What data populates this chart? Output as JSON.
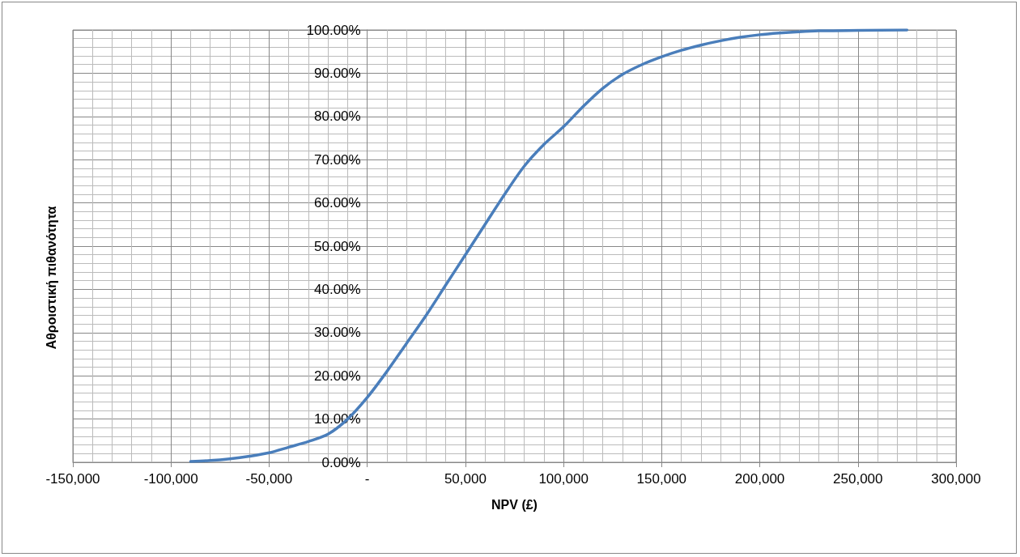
{
  "chart_data": {
    "type": "line",
    "xlabel": "NPV (£)",
    "ylabel": "Αθροιστική πιθανότητα",
    "series": [
      {
        "color": "#4a7ebb",
        "x": [
          -90000,
          -80000,
          -70000,
          -60000,
          -50000,
          -40000,
          -30000,
          -20000,
          -10000,
          0,
          10000,
          20000,
          30000,
          40000,
          50000,
          60000,
          70000,
          80000,
          90000,
          100000,
          110000,
          120000,
          130000,
          140000,
          150000,
          160000,
          170000,
          180000,
          190000,
          200000,
          210000,
          220000,
          230000,
          250000,
          275000
        ],
        "values": [
          0.2,
          0.4,
          0.8,
          1.4,
          2.2,
          3.5,
          4.8,
          6.5,
          10,
          15,
          21,
          27.5,
          34,
          41,
          48,
          55,
          62,
          68.5,
          73.5,
          77.6,
          82.3,
          86.5,
          89.7,
          92,
          93.8,
          95.3,
          96.5,
          97.5,
          98.3,
          98.9,
          99.3,
          99.6,
          99.8,
          99.9,
          100
        ]
      }
    ],
    "xlim": [
      -150000,
      300000
    ],
    "xticks": [
      {
        "value": -150000,
        "label": "-150,000"
      },
      {
        "value": -100000,
        "label": "-100,000"
      },
      {
        "value": -50000,
        "label": "-50,000"
      },
      {
        "value": 0,
        "label": "-"
      },
      {
        "value": 50000,
        "label": "50,000"
      },
      {
        "value": 100000,
        "label": "100,000"
      },
      {
        "value": 150000,
        "label": "150,000"
      },
      {
        "value": 200000,
        "label": "200,000"
      },
      {
        "value": 250000,
        "label": "250,000"
      },
      {
        "value": 300000,
        "label": "300,000"
      }
    ],
    "ylim": [
      0,
      100
    ],
    "yticks": [
      {
        "value": 0,
        "label": "0.00%"
      },
      {
        "value": 10,
        "label": "10.00%"
      },
      {
        "value": 20,
        "label": "20.00%"
      },
      {
        "value": 30,
        "label": "30.00%"
      },
      {
        "value": 40,
        "label": "40.00%"
      },
      {
        "value": 50,
        "label": "50.00%"
      },
      {
        "value": 60,
        "label": "60.00%"
      },
      {
        "value": 70,
        "label": "70.00%"
      },
      {
        "value": 80,
        "label": "80.00%"
      },
      {
        "value": 90,
        "label": "90.00%"
      },
      {
        "value": 100,
        "label": "100.00%"
      }
    ],
    "grid": true,
    "marker": "none",
    "line_style": "solid"
  }
}
